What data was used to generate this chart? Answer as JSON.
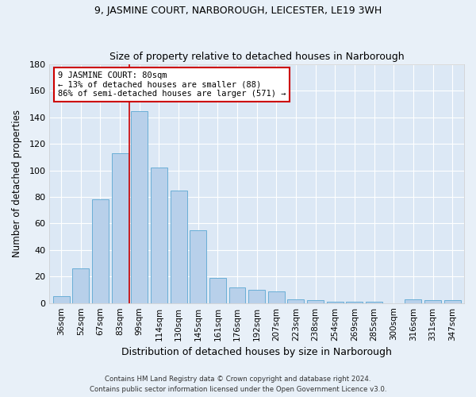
{
  "title1": "9, JASMINE COURT, NARBOROUGH, LEICESTER, LE19 3WH",
  "title2": "Size of property relative to detached houses in Narborough",
  "xlabel": "Distribution of detached houses by size in Narborough",
  "ylabel": "Number of detached properties",
  "categories": [
    "36sqm",
    "52sqm",
    "67sqm",
    "83sqm",
    "99sqm",
    "114sqm",
    "130sqm",
    "145sqm",
    "161sqm",
    "176sqm",
    "192sqm",
    "207sqm",
    "223sqm",
    "238sqm",
    "254sqm",
    "269sqm",
    "285sqm",
    "300sqm",
    "316sqm",
    "331sqm",
    "347sqm"
  ],
  "values": [
    5,
    26,
    78,
    113,
    145,
    102,
    85,
    55,
    19,
    12,
    10,
    9,
    3,
    2,
    1,
    1,
    1,
    0,
    3,
    2,
    2
  ],
  "bar_color": "#b8d0ea",
  "bar_edge_color": "#6aaed6",
  "background_color": "#dce8f5",
  "fig_background_color": "#e8f0f8",
  "grid_color": "#ffffff",
  "vline_x": 3.5,
  "vline_color": "#cc0000",
  "annotation_text": "9 JASMINE COURT: 80sqm\n← 13% of detached houses are smaller (88)\n86% of semi-detached houses are larger (571) →",
  "annotation_box_color": "#ffffff",
  "annotation_box_edge_color": "#cc0000",
  "ylim": [
    0,
    180
  ],
  "yticks": [
    0,
    20,
    40,
    60,
    80,
    100,
    120,
    140,
    160,
    180
  ],
  "footer1": "Contains HM Land Registry data © Crown copyright and database right 2024.",
  "footer2": "Contains public sector information licensed under the Open Government Licence v3.0."
}
